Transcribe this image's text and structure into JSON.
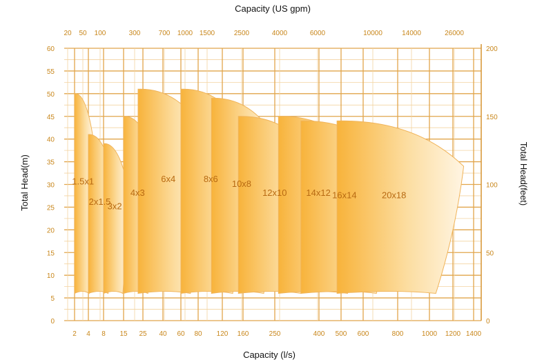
{
  "chart_data": {
    "type": "area",
    "title": "",
    "top_axis_title": "Capacity (US gpm)",
    "bottom_axis_title": "Capacity (l/s)",
    "left_axis_title": "Total Head(m)",
    "right_axis_title": "Total Head(feet)",
    "bottom_ticks": [
      "2",
      "4",
      "8",
      "15",
      "25",
      "40",
      "60",
      "80",
      "120",
      "160",
      "250",
      "400",
      "500",
      "600",
      "800",
      "1000",
      "1200",
      "1400"
    ],
    "top_ticks": [
      "20",
      "50",
      "100",
      "300",
      "700",
      "1000",
      "1500",
      "2500",
      "4000",
      "6000",
      "10000",
      "14000",
      "26000"
    ],
    "left_ticks": [
      "0",
      "5",
      "10",
      "15",
      "20",
      "25",
      "30",
      "35",
      "40",
      "45",
      "50",
      "55",
      "60"
    ],
    "right_ticks": [
      "0",
      "50",
      "100",
      "150",
      "200"
    ],
    "ylim_m": [
      0,
      60
    ],
    "ylim_ft": [
      0,
      200
    ],
    "grid": true,
    "pumps": [
      {
        "label": "1.5x1",
        "q_min": 2,
        "q_max": 5,
        "head_max": 50,
        "head_min": 6
      },
      {
        "label": "2x1.5",
        "q_min": 4,
        "q_max": 11,
        "head_max": 41,
        "head_min": 6
      },
      {
        "label": "3x2",
        "q_min": 8,
        "q_max": 17,
        "head_max": 39,
        "head_min": 6
      },
      {
        "label": "4x3",
        "q_min": 15,
        "q_max": 33,
        "head_max": 45,
        "head_min": 6
      },
      {
        "label": "6x4",
        "q_min": 22,
        "q_max": 90,
        "head_max": 51,
        "head_min": 6
      },
      {
        "label": "8x6",
        "q_min": 60,
        "q_max": 170,
        "head_max": 51,
        "head_min": 6
      },
      {
        "label": "10x8",
        "q_min": 100,
        "q_max": 260,
        "head_max": 49,
        "head_min": 6
      },
      {
        "label": "12x10",
        "q_min": 150,
        "q_max": 400,
        "head_max": 45,
        "head_min": 6
      },
      {
        "label": "14x12",
        "q_min": 260,
        "q_max": 620,
        "head_max": 45,
        "head_min": 6
      },
      {
        "label": "16x14",
        "q_min": 330,
        "q_max": 800,
        "head_max": 44,
        "head_min": 6
      },
      {
        "label": "20x18",
        "q_min": 480,
        "q_max": 1300,
        "head_max": 44,
        "head_min": 6
      }
    ]
  }
}
